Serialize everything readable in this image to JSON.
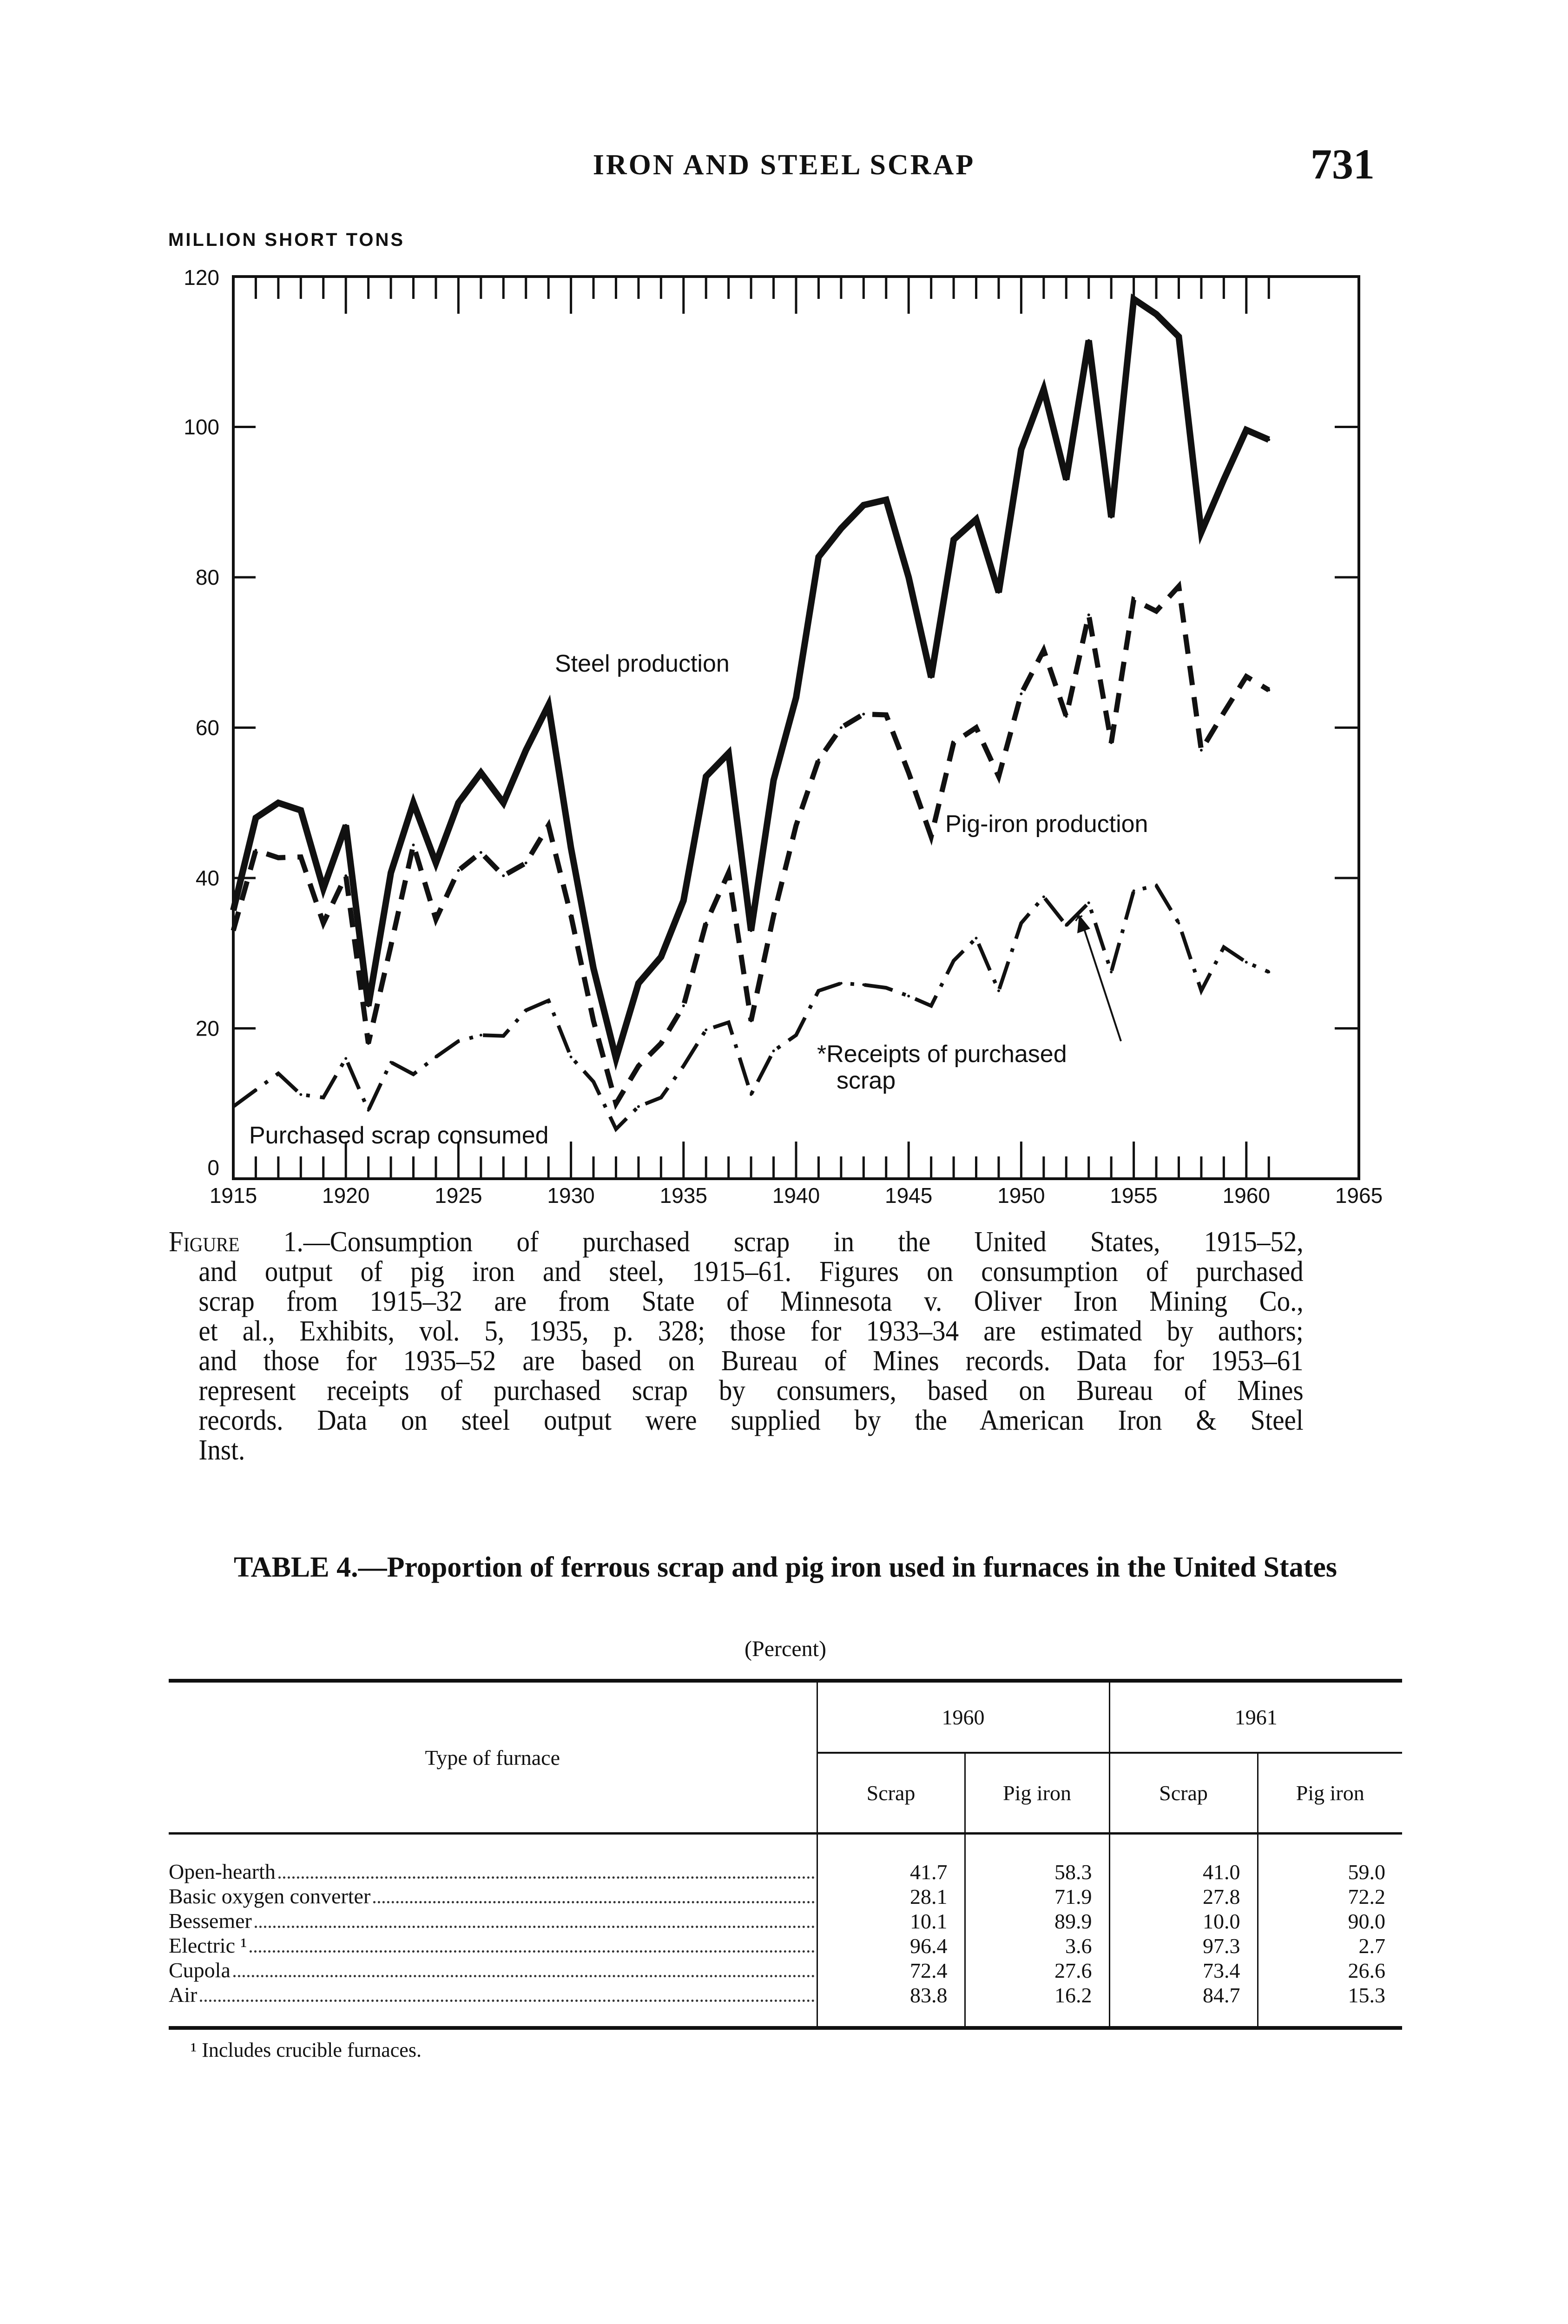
{
  "header": {
    "running_head": "IRON AND STEEL SCRAP",
    "page_number": "731"
  },
  "chart_data": {
    "type": "line",
    "ylabel": "MILLION SHORT TONS",
    "ylim": [
      0,
      120
    ],
    "xlim": [
      1915,
      1965
    ],
    "y_ticks": [
      "0",
      "20",
      "40",
      "60",
      "80",
      "100",
      "120"
    ],
    "x_ticks": [
      "1915",
      "1920",
      "1925",
      "1930",
      "1935",
      "1940",
      "1945",
      "1950",
      "1955",
      "1960",
      "1965"
    ],
    "grid": false,
    "legend": "inline labels",
    "series": [
      {
        "name": "Steel production",
        "style": "solid",
        "x": [
          1915,
          1916,
          1917,
          1918,
          1919,
          1920,
          1921,
          1922,
          1923,
          1924,
          1925,
          1926,
          1927,
          1928,
          1929,
          1930,
          1931,
          1932,
          1933,
          1934,
          1935,
          1936,
          1937,
          1938,
          1939,
          1940,
          1941,
          1942,
          1943,
          1944,
          1945,
          1946,
          1947,
          1948,
          1949,
          1950,
          1951,
          1952,
          1953,
          1954,
          1955,
          1956,
          1957,
          1958,
          1959,
          1960,
          1961
        ],
        "values": [
          35.7,
          48,
          50,
          49,
          38.6,
          47,
          23,
          40.7,
          50,
          42,
          50,
          54,
          50,
          57,
          63,
          44,
          28,
          16,
          26,
          29.5,
          37,
          53.5,
          56.6,
          33,
          53,
          64,
          82.7,
          86.5,
          89.6,
          90.3,
          80,
          66.7,
          85,
          87.7,
          78,
          97,
          105,
          93,
          111.5,
          88,
          117,
          115,
          112,
          86,
          93,
          99.6,
          98.3
        ]
      },
      {
        "name": "Pig-iron production",
        "style": "dashed",
        "x": [
          1915,
          1916,
          1917,
          1918,
          1919,
          1920,
          1921,
          1922,
          1923,
          1924,
          1925,
          1926,
          1927,
          1928,
          1929,
          1930,
          1931,
          1932,
          1933,
          1934,
          1935,
          1936,
          1937,
          1938,
          1939,
          1940,
          1941,
          1942,
          1943,
          1944,
          1945,
          1946,
          1947,
          1948,
          1949,
          1950,
          1951,
          1952,
          1953,
          1954,
          1955,
          1956,
          1957,
          1958,
          1959,
          1960,
          1961
        ],
        "values": [
          33,
          43.7,
          42.7,
          42.8,
          34,
          40.3,
          18,
          31,
          44.4,
          34.5,
          41,
          43.4,
          40.3,
          42,
          47,
          35,
          21,
          10,
          15,
          18,
          23,
          34,
          40.7,
          21,
          35,
          47,
          55.7,
          60,
          61.8,
          61.7,
          54,
          45.5,
          58,
          60,
          53.5,
          64.5,
          70.3,
          61.5,
          75,
          58,
          77,
          75.5,
          78.8,
          57,
          62,
          66.8,
          65
        ]
      },
      {
        "name": "Purchased scrap consumed",
        "style": "dash-dot",
        "x": [
          1915,
          1916,
          1917,
          1918,
          1919,
          1920,
          1921,
          1922,
          1923,
          1924,
          1925,
          1926,
          1927,
          1928,
          1929,
          1930,
          1931,
          1932,
          1933,
          1934,
          1935,
          1936,
          1937,
          1938,
          1939,
          1940,
          1941,
          1942,
          1943,
          1944,
          1945,
          1946,
          1947,
          1948,
          1949,
          1950,
          1951,
          1952
        ],
        "values": [
          9.6,
          11.8,
          14,
          11.2,
          10.8,
          16,
          9.1,
          15.5,
          13.9,
          16.2,
          18.3,
          19.1,
          19,
          22.4,
          23.7,
          16.2,
          12.9,
          6.6,
          9.6,
          10.8,
          15,
          19.8,
          20.8,
          11.2,
          17,
          19.1,
          25,
          26,
          25.8,
          25.4,
          24.3,
          23,
          29,
          32,
          25,
          34,
          37.5,
          33.7
        ]
      },
      {
        "name": "*Receipts of purchased scrap",
        "style": "dash-dot",
        "x": [
          1953,
          1954,
          1955,
          1956,
          1957,
          1958,
          1959,
          1960,
          1961
        ],
        "values": [
          36.7,
          27.5,
          38.3,
          39,
          34,
          25,
          30.8,
          28.8,
          27.5
        ]
      }
    ],
    "labels": {
      "steel": "Steel production",
      "pig": "Pig-iron production",
      "receipts_line1": "*Receipts of purchased",
      "receipts_line2": "scrap",
      "consumed": "Purchased scrap consumed",
      "asterisk": "*"
    }
  },
  "caption": {
    "lead": "Figure 1.",
    "lines": [
      "—Consumption of purchased scrap in the United States, 1915–52,",
      "and output of pig iron and steel, 1915–61. Figures on consumption of purchased",
      "scrap from 1915–32 are from State of Minnesota v. Oliver Iron Mining Co.,",
      "et al., Exhibits, vol. 5, 1935, p. 328; those for 1933–34 are estimated by authors;",
      "and those for 1935–52 are based on Bureau of Mines records. Data for 1953–61",
      "represent receipts of purchased scrap by consumers, based on Bureau of Mines",
      "records. Data on steel output were supplied by the American Iron & Steel",
      "Inst."
    ]
  },
  "table": {
    "title": "TABLE 4.—Proportion of ferrous scrap and pig iron used in furnaces in the United States",
    "unit": "(Percent)",
    "stub_header": "Type of furnace",
    "years": [
      "1960",
      "1961"
    ],
    "subheaders": [
      "Scrap",
      "Pig iron",
      "Scrap",
      "Pig iron"
    ],
    "rows": [
      {
        "type": "Open-hearth",
        "values": [
          "41.7",
          "58.3",
          "41.0",
          "59.0"
        ]
      },
      {
        "type": "Basic oxygen converter",
        "values": [
          "28.1",
          "71.9",
          "27.8",
          "72.2"
        ]
      },
      {
        "type": "Bessemer",
        "values": [
          "10.1",
          "89.9",
          "10.0",
          "90.0"
        ]
      },
      {
        "type": "Electric ¹",
        "values": [
          "96.4",
          "3.6",
          "97.3",
          "2.7"
        ]
      },
      {
        "type": "Cupola",
        "values": [
          "72.4",
          "27.6",
          "73.4",
          "26.6"
        ]
      },
      {
        "type": "Air",
        "values": [
          "83.8",
          "16.2",
          "84.7",
          "15.3"
        ]
      }
    ],
    "footnote": "¹ Includes crucible furnaces."
  }
}
